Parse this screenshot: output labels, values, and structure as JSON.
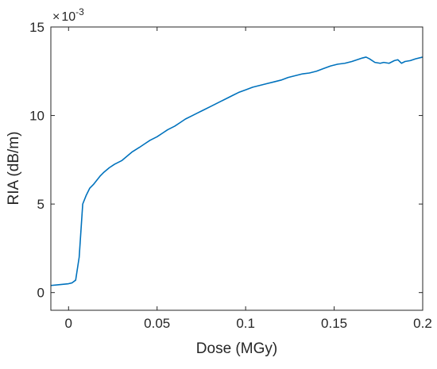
{
  "chart_data": {
    "type": "line",
    "title": "",
    "xlabel": "Dose (MGy)",
    "ylabel": "RIA (dB/m)",
    "xlim": [
      -0.01,
      0.2
    ],
    "ylim": [
      -1,
      15
    ],
    "y_exponent": {
      "base": "10",
      "power": "-3",
      "mark": "×"
    },
    "xticks": [
      0,
      0.05,
      0.1,
      0.15,
      0.2
    ],
    "xtick_labels": [
      "0",
      "0.05",
      "0.1",
      "0.15",
      "0.2"
    ],
    "yticks": [
      0,
      5,
      10,
      15
    ],
    "ytick_labels": [
      "0",
      "5",
      "10",
      "15"
    ],
    "grid": false,
    "legend": "none",
    "line_color": "#0072BD",
    "series": [
      {
        "x": [
          -0.01,
          -0.005,
          0.0,
          0.002,
          0.004,
          0.006,
          0.008,
          0.01,
          0.012,
          0.014,
          0.016,
          0.018,
          0.02,
          0.023,
          0.026,
          0.03,
          0.033,
          0.036,
          0.04,
          0.043,
          0.046,
          0.05,
          0.053,
          0.056,
          0.06,
          0.063,
          0.066,
          0.07,
          0.073,
          0.076,
          0.08,
          0.083,
          0.086,
          0.09,
          0.093,
          0.096,
          0.1,
          0.104,
          0.108,
          0.112,
          0.116,
          0.12,
          0.124,
          0.128,
          0.132,
          0.136,
          0.14,
          0.144,
          0.148,
          0.152,
          0.156,
          0.16,
          0.163,
          0.166,
          0.168,
          0.17,
          0.173,
          0.176,
          0.178,
          0.181,
          0.184,
          0.186,
          0.188,
          0.19,
          0.193,
          0.196,
          0.2
        ],
        "y": [
          0.4,
          0.45,
          0.5,
          0.55,
          0.7,
          2.0,
          5.0,
          5.5,
          5.9,
          6.1,
          6.35,
          6.6,
          6.8,
          7.05,
          7.25,
          7.45,
          7.7,
          7.95,
          8.2,
          8.4,
          8.6,
          8.8,
          9.0,
          9.2,
          9.4,
          9.6,
          9.8,
          10.0,
          10.15,
          10.3,
          10.5,
          10.65,
          10.8,
          11.0,
          11.15,
          11.3,
          11.45,
          11.6,
          11.7,
          11.8,
          11.9,
          12.0,
          12.15,
          12.25,
          12.35,
          12.4,
          12.5,
          12.65,
          12.8,
          12.9,
          12.95,
          13.05,
          13.15,
          13.25,
          13.3,
          13.2,
          13.0,
          12.95,
          13.0,
          12.95,
          13.1,
          13.15,
          12.95,
          13.05,
          13.1,
          13.2,
          13.3
        ]
      }
    ]
  }
}
